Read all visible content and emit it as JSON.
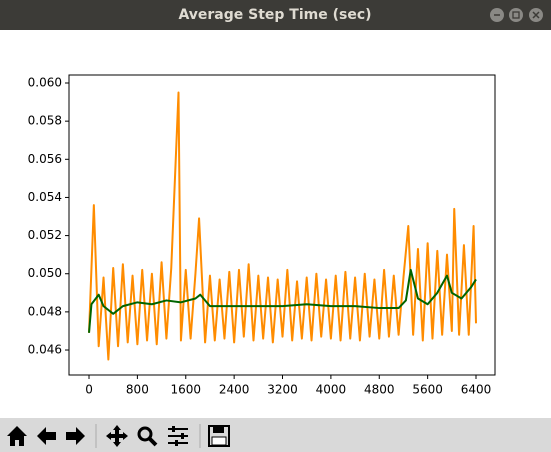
{
  "window": {
    "title": "Average Step Time (sec)"
  },
  "chart_data": {
    "type": "line",
    "series": [
      {
        "color": "#ff8c00",
        "x": [
          0,
          80,
          160,
          240,
          320,
          400,
          480,
          560,
          640,
          720,
          800,
          880,
          960,
          1040,
          1120,
          1200,
          1280,
          1360,
          1480,
          1520,
          1600,
          1680,
          1760,
          1820,
          1920,
          2000,
          2080,
          2160,
          2240,
          2320,
          2400,
          2480,
          2560,
          2640,
          2720,
          2800,
          2880,
          2960,
          3040,
          3120,
          3200,
          3280,
          3360,
          3440,
          3520,
          3600,
          3680,
          3760,
          3840,
          3920,
          4000,
          4080,
          4160,
          4240,
          4320,
          4400,
          4480,
          4560,
          4640,
          4720,
          4800,
          4880,
          4960,
          5040,
          5120,
          5200,
          5280,
          5360,
          5440,
          5520,
          5600,
          5680,
          5760,
          5840,
          5920,
          6000,
          6040,
          6120,
          6200,
          6280,
          6360,
          6400
        ],
        "values": [
          0.0469,
          0.0536,
          0.0462,
          0.0498,
          0.0455,
          0.0503,
          0.0462,
          0.0505,
          0.0464,
          0.0499,
          0.0463,
          0.0502,
          0.0465,
          0.05,
          0.0463,
          0.0506,
          0.0466,
          0.0503,
          0.0595,
          0.0465,
          0.0502,
          0.0466,
          0.05,
          0.0529,
          0.0464,
          0.0499,
          0.0465,
          0.0497,
          0.0466,
          0.0501,
          0.0464,
          0.0502,
          0.0467,
          0.0505,
          0.0465,
          0.0499,
          0.0466,
          0.0498,
          0.0464,
          0.0497,
          0.0467,
          0.0502,
          0.0465,
          0.0496,
          0.0466,
          0.0498,
          0.0465,
          0.05,
          0.0467,
          0.0497,
          0.0466,
          0.0499,
          0.0465,
          0.0501,
          0.0466,
          0.0498,
          0.0465,
          0.05,
          0.0467,
          0.0497,
          0.0466,
          0.0502,
          0.0467,
          0.0499,
          0.0468,
          0.0498,
          0.0525,
          0.0468,
          0.0513,
          0.0465,
          0.0516,
          0.0466,
          0.0512,
          0.0468,
          0.051,
          0.047,
          0.0534,
          0.0468,
          0.0515,
          0.0468,
          0.0525,
          0.0474
        ]
      },
      {
        "color": "#006400",
        "x": [
          0,
          40,
          160,
          240,
          400,
          560,
          800,
          1040,
          1280,
          1520,
          1760,
          1840,
          2000,
          2400,
          2800,
          3200,
          3600,
          4000,
          4400,
          4800,
          5120,
          5240,
          5320,
          5440,
          5600,
          5760,
          5920,
          6000,
          6160,
          6320,
          6400
        ],
        "values": [
          0.0469,
          0.0484,
          0.0489,
          0.0483,
          0.0479,
          0.0483,
          0.0485,
          0.0484,
          0.0486,
          0.0485,
          0.0487,
          0.0489,
          0.0483,
          0.0483,
          0.0483,
          0.0483,
          0.0484,
          0.0483,
          0.0483,
          0.0482,
          0.0482,
          0.0486,
          0.0502,
          0.0487,
          0.0484,
          0.049,
          0.0499,
          0.049,
          0.0487,
          0.0493,
          0.0497
        ]
      }
    ],
    "xlim": [
      -331,
      6714
    ],
    "xticks": [
      0,
      800,
      1600,
      2400,
      3200,
      4000,
      4800,
      5600,
      6400
    ],
    "ylim": [
      0.04469,
      0.06042
    ],
    "yticks": [
      0.046,
      0.048,
      {
        "value": 0.05,
        "label": "0.050"
      },
      0.052,
      0.054,
      0.056,
      0.058,
      {
        "value": 0.06,
        "label": "0.060"
      }
    ]
  }
}
